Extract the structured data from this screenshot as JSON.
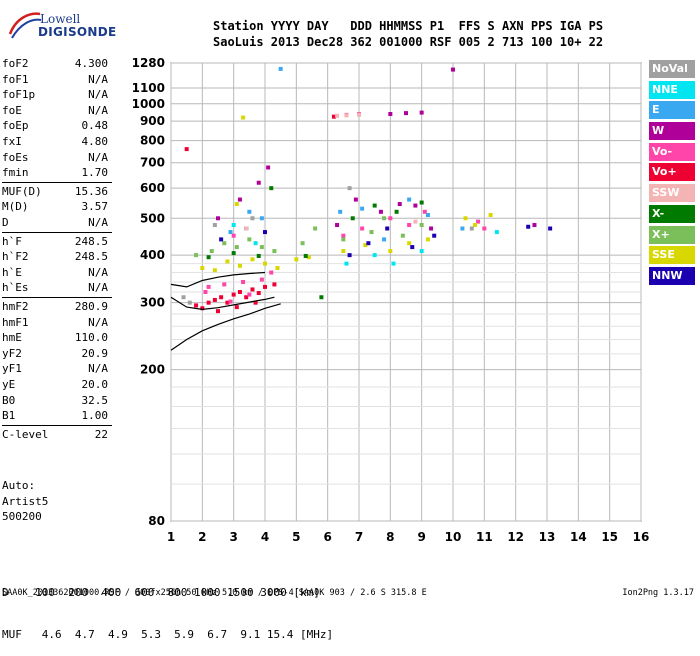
{
  "logo": {
    "line1": "Lowell",
    "line2": "DIGISONDE"
  },
  "header": {
    "row1": "Station YYYY DAY   DDD HHMMSS P1  FFS S AXN PPS IGA PS",
    "row2": "SaoLuis 2013 Dec28 362 001000 RSF 005 2 713 100 10+ 22"
  },
  "params_group1": [
    {
      "name": "foF2",
      "value": "4.300"
    },
    {
      "name": "foF1",
      "value": "N/A"
    },
    {
      "name": "foF1p",
      "value": "N/A"
    },
    {
      "name": "foE",
      "value": "N/A"
    },
    {
      "name": "foEp",
      "value": "0.48"
    },
    {
      "name": "fxI",
      "value": "4.80"
    },
    {
      "name": "foEs",
      "value": "N/A"
    },
    {
      "name": "fmin",
      "value": "1.70"
    }
  ],
  "params_group2": [
    {
      "name": "MUF(D)",
      "value": "15.36"
    },
    {
      "name": "M(D)",
      "value": "3.57"
    },
    {
      "name": "D",
      "value": "N/A"
    }
  ],
  "params_group3": [
    {
      "name": "h`F",
      "value": "248.5"
    },
    {
      "name": "h`F2",
      "value": "248.5"
    },
    {
      "name": "h`E",
      "value": "N/A"
    },
    {
      "name": "h`Es",
      "value": "N/A"
    }
  ],
  "params_group4": [
    {
      "name": "hmF2",
      "value": "280.9"
    },
    {
      "name": "hmF1",
      "value": "N/A"
    },
    {
      "name": "hmE",
      "value": "110.0"
    },
    {
      "name": "yF2",
      "value": "20.9"
    },
    {
      "name": "yF1",
      "value": "N/A"
    },
    {
      "name": "yE",
      "value": "20.0"
    },
    {
      "name": "B0",
      "value": "32.5"
    },
    {
      "name": "B1",
      "value": "1.00"
    }
  ],
  "params_group5": [
    {
      "name": "C-level",
      "value": "22"
    }
  ],
  "auto": {
    "line1": "Auto:",
    "line2": "Artist5",
    "line3": "500200"
  },
  "legend": [
    {
      "label": "NoVal",
      "color": "#a0a0a0"
    },
    {
      "label": "NNE",
      "color": "#00e5f0"
    },
    {
      "label": "E",
      "color": "#3aa8f0"
    },
    {
      "label": "W",
      "color": "#b0009a"
    },
    {
      "label": "Vo-",
      "color": "#ff44aa"
    },
    {
      "label": "Vo+",
      "color": "#ee0033"
    },
    {
      "label": "SSW",
      "color": "#f4b4b4"
    },
    {
      "label": "X-",
      "color": "#007a00"
    },
    {
      "label": "X+",
      "color": "#7abf5a"
    },
    {
      "label": "SSE",
      "color": "#d8d800"
    },
    {
      "label": "NNW",
      "color": "#1a00b0"
    }
  ],
  "muf_table": {
    "row1": "D    100  200  400  600  800 1000 1500 3000 [km]",
    "row2": "MUF   4.6  4.7  4.9  5.3  5.9  6.7  9.1 15.4 [MHz]"
  },
  "footer": {
    "left": "SAA0K_2013362001000.RSF / 300fx256h 50 kHz 5.0 km / DPS-4 SAA0K 903 / 2.6 S 315.8 E",
    "right": "Ion2Png 1.3.17"
  },
  "chart_data": {
    "type": "scatter",
    "title": "",
    "xlabel": "",
    "ylabel": "",
    "xlim": [
      1,
      16
    ],
    "ylim": [
      80,
      1280
    ],
    "x_ticks": [
      1,
      2,
      3,
      4,
      5,
      6,
      7,
      8,
      9,
      10,
      11,
      12,
      13,
      14,
      15,
      16
    ],
    "y_ticks": [
      80,
      200,
      300,
      400,
      500,
      600,
      700,
      800,
      900,
      1000,
      1100,
      1280
    ],
    "y_scale": "log",
    "grid": true,
    "series": [
      {
        "name": "Vo+",
        "color": "#ee0033",
        "points": [
          [
            1.8,
            295
          ],
          [
            2.0,
            290
          ],
          [
            2.2,
            300
          ],
          [
            2.4,
            305
          ],
          [
            2.6,
            310
          ],
          [
            2.8,
            300
          ],
          [
            3.0,
            315
          ],
          [
            3.2,
            320
          ],
          [
            3.4,
            310
          ],
          [
            3.6,
            325
          ],
          [
            3.8,
            318
          ],
          [
            4.0,
            330
          ],
          [
            2.5,
            285
          ],
          [
            3.1,
            292
          ],
          [
            3.7,
            300
          ],
          [
            4.3,
            335
          ],
          [
            1.5,
            760
          ],
          [
            6.2,
            925
          ]
        ]
      },
      {
        "name": "Vo-",
        "color": "#ff44aa",
        "points": [
          [
            2.1,
            320
          ],
          [
            2.7,
            335
          ],
          [
            3.3,
            340
          ],
          [
            3.9,
            345
          ],
          [
            4.2,
            360
          ],
          [
            6.5,
            450
          ],
          [
            7.1,
            470
          ],
          [
            8.0,
            500
          ],
          [
            8.6,
            480
          ],
          [
            9.1,
            520
          ],
          [
            10.8,
            490
          ],
          [
            11.0,
            470
          ],
          [
            3.0,
            450
          ],
          [
            2.2,
            330
          ],
          [
            2.9,
            302
          ],
          [
            3.5,
            315
          ],
          [
            6.6,
            935
          ],
          [
            7.0,
            940
          ]
        ]
      },
      {
        "name": "SSE",
        "color": "#d8d800",
        "points": [
          [
            2.0,
            370
          ],
          [
            2.4,
            365
          ],
          [
            2.8,
            385
          ],
          [
            3.2,
            375
          ],
          [
            3.6,
            390
          ],
          [
            4.0,
            380
          ],
          [
            4.4,
            370
          ],
          [
            5.0,
            390
          ],
          [
            5.4,
            395
          ],
          [
            6.5,
            410
          ],
          [
            7.2,
            425
          ],
          [
            8.0,
            410
          ],
          [
            8.6,
            430
          ],
          [
            9.2,
            440
          ],
          [
            10.4,
            500
          ],
          [
            10.7,
            480
          ],
          [
            11.2,
            510
          ],
          [
            3.3,
            920
          ],
          [
            3.1,
            545
          ]
        ]
      },
      {
        "name": "X+",
        "color": "#7abf5a",
        "points": [
          [
            1.8,
            400
          ],
          [
            2.3,
            410
          ],
          [
            2.7,
            430
          ],
          [
            3.1,
            420
          ],
          [
            3.5,
            440
          ],
          [
            3.9,
            420
          ],
          [
            4.3,
            410
          ],
          [
            5.2,
            430
          ],
          [
            5.6,
            470
          ],
          [
            6.5,
            440
          ],
          [
            7.4,
            460
          ],
          [
            7.8,
            500
          ],
          [
            8.4,
            450
          ],
          [
            9.0,
            480
          ]
        ]
      },
      {
        "name": "X-",
        "color": "#007a00",
        "points": [
          [
            2.2,
            395
          ],
          [
            3.0,
            405
          ],
          [
            3.8,
            398
          ],
          [
            4.2,
            600
          ],
          [
            5.3,
            398
          ],
          [
            6.8,
            500
          ],
          [
            7.5,
            540
          ],
          [
            8.2,
            520
          ],
          [
            9.0,
            550
          ],
          [
            5.8,
            310
          ]
        ]
      },
      {
        "name": "W",
        "color": "#b0009a",
        "points": [
          [
            2.5,
            500
          ],
          [
            3.2,
            560
          ],
          [
            3.8,
            620
          ],
          [
            4.1,
            680
          ],
          [
            6.3,
            480
          ],
          [
            6.9,
            560
          ],
          [
            7.7,
            520
          ],
          [
            8.3,
            545
          ],
          [
            8.8,
            540
          ],
          [
            9.3,
            470
          ],
          [
            8.0,
            940
          ],
          [
            8.5,
            945
          ],
          [
            9.0,
            948
          ],
          [
            12.6,
            480
          ],
          [
            10.0,
            1230
          ]
        ]
      },
      {
        "name": "NNW",
        "color": "#1a00b0",
        "points": [
          [
            2.6,
            440
          ],
          [
            3.4,
            470
          ],
          [
            4.0,
            460
          ],
          [
            6.7,
            400
          ],
          [
            7.3,
            430
          ],
          [
            7.9,
            470
          ],
          [
            8.7,
            420
          ],
          [
            9.4,
            450
          ],
          [
            12.4,
            475
          ],
          [
            13.1,
            470
          ]
        ]
      },
      {
        "name": "E",
        "color": "#3aa8f0",
        "points": [
          [
            2.9,
            460
          ],
          [
            3.5,
            520
          ],
          [
            3.9,
            500
          ],
          [
            6.4,
            520
          ],
          [
            7.1,
            530
          ],
          [
            7.8,
            440
          ],
          [
            8.6,
            560
          ],
          [
            9.2,
            510
          ],
          [
            10.3,
            470
          ],
          [
            4.5,
            1235
          ]
        ]
      },
      {
        "name": "NNE",
        "color": "#00e5f0",
        "points": [
          [
            3.0,
            480
          ],
          [
            3.7,
            430
          ],
          [
            6.6,
            380
          ],
          [
            7.5,
            400
          ],
          [
            8.1,
            380
          ],
          [
            9.0,
            410
          ],
          [
            11.4,
            460
          ]
        ]
      },
      {
        "name": "SSW",
        "color": "#f4b4b4",
        "points": [
          [
            6.3,
            930
          ],
          [
            6.6,
            932
          ],
          [
            7.0,
            936
          ],
          [
            3.4,
            470
          ],
          [
            8.8,
            490
          ]
        ]
      },
      {
        "name": "NoVal",
        "color": "#a0a0a0",
        "points": [
          [
            2.4,
            480
          ],
          [
            3.6,
            500
          ],
          [
            6.7,
            600
          ],
          [
            10.6,
            470
          ],
          [
            1.4,
            310
          ],
          [
            1.6,
            300
          ]
        ]
      }
    ],
    "lines": [
      {
        "name": "",
        "points": [
          [
            1,
            225
          ],
          [
            1.5,
            240
          ],
          [
            2,
            253
          ],
          [
            2.5,
            263
          ],
          [
            3,
            272
          ],
          [
            3.5,
            280
          ],
          [
            4,
            290
          ],
          [
            4.5,
            298
          ]
        ]
      },
      {
        "name": "",
        "points": [
          [
            1,
            310
          ],
          [
            1.5,
            292
          ],
          [
            2,
            288
          ],
          [
            2.5,
            291
          ],
          [
            3,
            296
          ],
          [
            3.5,
            301
          ],
          [
            4,
            306
          ],
          [
            4.3,
            310
          ]
        ]
      },
      {
        "name": "",
        "points": [
          [
            1,
            335
          ],
          [
            1.5,
            330
          ],
          [
            2,
            343
          ],
          [
            2.5,
            350
          ],
          [
            3,
            355
          ],
          [
            3.5,
            358
          ],
          [
            4,
            360
          ]
        ]
      }
    ]
  }
}
